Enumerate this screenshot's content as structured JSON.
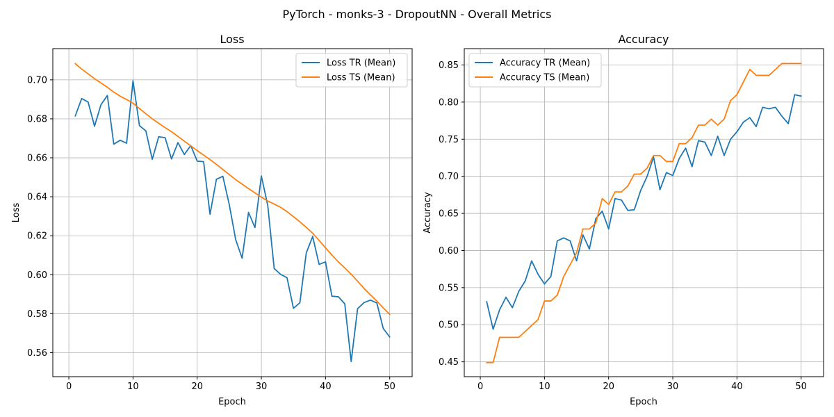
{
  "figure": {
    "suptitle": "PyTorch - monks-3 - DropoutNN - Overall Metrics"
  },
  "colors": {
    "train": "#1f77b4",
    "test": "#ff7f0e",
    "grid": "#b0b0b0"
  },
  "chart_data": [
    {
      "type": "line",
      "title": "Loss",
      "xlabel": "Epoch",
      "ylabel": "Loss",
      "xlim": [
        -2.5,
        53.5
      ],
      "ylim": [
        0.5477,
        0.716
      ],
      "xticks": [
        0,
        10,
        20,
        30,
        40,
        50
      ],
      "yticks": [
        0.56,
        0.58,
        0.6,
        0.62,
        0.64,
        0.66,
        0.68,
        0.7
      ],
      "ytick_labels": [
        "0.56",
        "0.58",
        "0.60",
        "0.62",
        "0.64",
        "0.66",
        "0.68",
        "0.70"
      ],
      "grid": true,
      "legend": "top-right",
      "x": [
        1,
        2,
        3,
        4,
        5,
        6,
        7,
        8,
        9,
        10,
        11,
        12,
        13,
        14,
        15,
        16,
        17,
        18,
        19,
        20,
        21,
        22,
        23,
        24,
        25,
        26,
        27,
        28,
        29,
        30,
        31,
        32,
        33,
        34,
        35,
        36,
        37,
        38,
        39,
        40,
        41,
        42,
        43,
        44,
        45,
        46,
        47,
        48,
        49,
        50
      ],
      "series": [
        {
          "name": "Loss TR (Mean)",
          "color": "#1f77b4",
          "values": [
            0.6815,
            0.6904,
            0.6886,
            0.6762,
            0.6872,
            0.692,
            0.667,
            0.669,
            0.6675,
            0.6995,
            0.6765,
            0.6738,
            0.6592,
            0.6708,
            0.6703,
            0.6594,
            0.6678,
            0.6617,
            0.6663,
            0.6583,
            0.658,
            0.631,
            0.649,
            0.6505,
            0.636,
            0.618,
            0.6085,
            0.632,
            0.6242,
            0.6507,
            0.6355,
            0.6032,
            0.6002,
            0.5985,
            0.5828,
            0.5856,
            0.6112,
            0.6196,
            0.6053,
            0.6066,
            0.589,
            0.5887,
            0.5851,
            0.5555,
            0.5826,
            0.5857,
            0.587,
            0.5855,
            0.5724,
            0.5681
          ]
        },
        {
          "name": "Loss TS (Mean)",
          "color": "#ff7f0e",
          "values": [
            0.7083,
            0.7055,
            0.7031,
            0.7006,
            0.6984,
            0.6962,
            0.6937,
            0.6916,
            0.6899,
            0.688,
            0.6853,
            0.6826,
            0.68,
            0.6777,
            0.6755,
            0.6734,
            0.671,
            0.6685,
            0.6661,
            0.6637,
            0.6614,
            0.6591,
            0.6566,
            0.654,
            0.6514,
            0.6488,
            0.6465,
            0.6442,
            0.642,
            0.6398,
            0.6378,
            0.6363,
            0.6346,
            0.6324,
            0.6298,
            0.6272,
            0.6243,
            0.6213,
            0.6176,
            0.6138,
            0.6101,
            0.6066,
            0.6035,
            0.6003,
            0.5967,
            0.593,
            0.5897,
            0.5865,
            0.583,
            0.5797
          ]
        }
      ]
    },
    {
      "type": "line",
      "title": "Accuracy",
      "xlabel": "Epoch",
      "ylabel": "Accuracy",
      "xlim": [
        -2.5,
        53.5
      ],
      "ylim": [
        0.43,
        0.872
      ],
      "xticks": [
        0,
        10,
        20,
        30,
        40,
        50
      ],
      "yticks": [
        0.45,
        0.5,
        0.55,
        0.6,
        0.65,
        0.7,
        0.75,
        0.8,
        0.85
      ],
      "ytick_labels": [
        "0.45",
        "0.50",
        "0.55",
        "0.60",
        "0.65",
        "0.70",
        "0.75",
        "0.80",
        "0.85"
      ],
      "grid": true,
      "legend": "top-left",
      "x": [
        1,
        2,
        3,
        4,
        5,
        6,
        7,
        8,
        9,
        10,
        11,
        12,
        13,
        14,
        15,
        16,
        17,
        18,
        19,
        20,
        21,
        22,
        23,
        24,
        25,
        26,
        27,
        28,
        29,
        30,
        31,
        32,
        33,
        34,
        35,
        36,
        37,
        38,
        39,
        40,
        41,
        42,
        43,
        44,
        45,
        46,
        47,
        48,
        49,
        50
      ],
      "series": [
        {
          "name": "Accuracy TR (Mean)",
          "color": "#1f77b4",
          "values": [
            0.531,
            0.494,
            0.52,
            0.537,
            0.523,
            0.545,
            0.559,
            0.586,
            0.568,
            0.555,
            0.565,
            0.613,
            0.617,
            0.613,
            0.586,
            0.621,
            0.602,
            0.643,
            0.653,
            0.629,
            0.67,
            0.668,
            0.654,
            0.655,
            0.681,
            0.7,
            0.726,
            0.682,
            0.705,
            0.701,
            0.724,
            0.738,
            0.713,
            0.748,
            0.746,
            0.728,
            0.754,
            0.728,
            0.75,
            0.76,
            0.773,
            0.779,
            0.767,
            0.793,
            0.791,
            0.793,
            0.781,
            0.771,
            0.81,
            0.808
          ]
        },
        {
          "name": "Accuracy TS (Mean)",
          "color": "#ff7f0e",
          "values": [
            0.449,
            0.449,
            0.483,
            0.483,
            0.483,
            0.483,
            0.491,
            0.499,
            0.507,
            0.532,
            0.532,
            0.54,
            0.565,
            0.581,
            0.597,
            0.629,
            0.629,
            0.637,
            0.67,
            0.662,
            0.679,
            0.679,
            0.687,
            0.703,
            0.703,
            0.711,
            0.728,
            0.728,
            0.72,
            0.72,
            0.744,
            0.744,
            0.752,
            0.769,
            0.769,
            0.777,
            0.769,
            0.777,
            0.802,
            0.81,
            0.827,
            0.844,
            0.836,
            0.836,
            0.836,
            0.844,
            0.852,
            0.852,
            0.852,
            0.852
          ]
        }
      ]
    }
  ]
}
